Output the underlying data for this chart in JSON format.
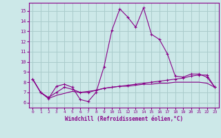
{
  "xlabel": "Windchill (Refroidissement éolien,°C)",
  "bg_color": "#cce8e8",
  "line_color": "#880088",
  "grid_color": "#aacccc",
  "x_values": [
    0,
    1,
    2,
    3,
    4,
    5,
    6,
    7,
    8,
    9,
    10,
    11,
    12,
    13,
    14,
    15,
    16,
    17,
    18,
    19,
    20,
    21,
    22,
    23
  ],
  "series1": [
    8.3,
    7.0,
    6.4,
    7.6,
    7.8,
    7.5,
    6.3,
    6.1,
    7.0,
    9.5,
    13.1,
    15.2,
    14.4,
    13.4,
    15.3,
    12.7,
    12.2,
    10.8,
    8.6,
    8.5,
    8.8,
    8.8,
    8.5,
    7.5
  ],
  "series2": [
    8.3,
    7.0,
    6.5,
    7.0,
    7.5,
    7.3,
    7.0,
    7.0,
    7.2,
    7.4,
    7.5,
    7.6,
    7.7,
    7.8,
    7.9,
    8.0,
    8.1,
    8.2,
    8.3,
    8.4,
    8.6,
    8.7,
    8.7,
    7.5
  ],
  "series3": [
    8.3,
    7.0,
    6.4,
    6.7,
    6.9,
    7.1,
    7.0,
    7.1,
    7.2,
    7.4,
    7.5,
    7.6,
    7.6,
    7.7,
    7.8,
    7.8,
    7.9,
    7.9,
    8.0,
    8.0,
    8.0,
    8.0,
    7.9,
    7.5
  ],
  "xlim": [
    -0.5,
    23.5
  ],
  "ylim": [
    5.5,
    15.8
  ],
  "yticks": [
    6,
    7,
    8,
    9,
    10,
    11,
    12,
    13,
    14,
    15
  ],
  "xticks": [
    0,
    1,
    2,
    3,
    4,
    5,
    6,
    7,
    8,
    9,
    10,
    11,
    12,
    13,
    14,
    15,
    16,
    17,
    18,
    19,
    20,
    21,
    22,
    23
  ]
}
